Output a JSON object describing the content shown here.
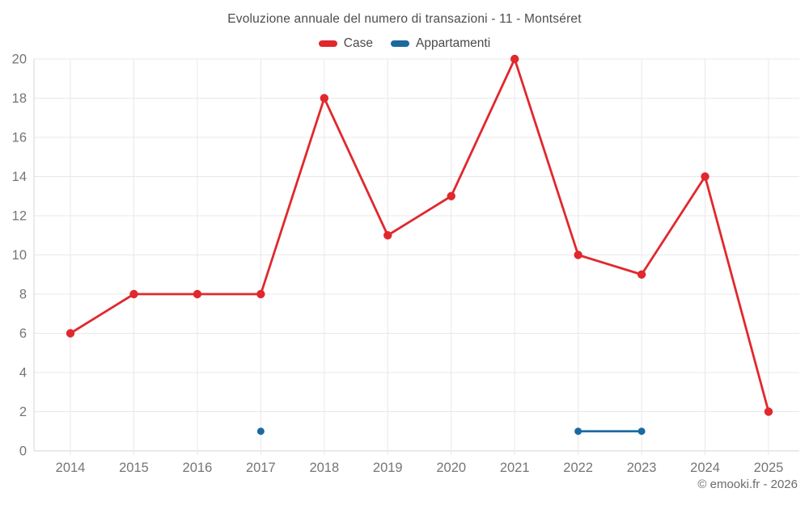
{
  "header": {
    "title": "Evoluzione annuale del numero di transazioni - 11 - Montséret"
  },
  "footer": {
    "copyright": "© emooki.fr - 2026"
  },
  "colors": {
    "case_red": "#e0282d",
    "appartamenti_blue": "#1a6a9f",
    "grid_line": "#e8e8e8",
    "axis_line": "#d5d5d5",
    "tick_text": "#757575"
  },
  "chart_data": {
    "type": "line",
    "title": "Evoluzione annuale del numero di transazioni - 11 - Montséret",
    "xlabel": "",
    "ylabel": "",
    "categories": [
      2014,
      2015,
      2016,
      2017,
      2018,
      2019,
      2020,
      2021,
      2022,
      2023,
      2024,
      2025
    ],
    "series": [
      {
        "name": "Case",
        "color": "#e0282d",
        "values": [
          6,
          8,
          8,
          8,
          18,
          11,
          13,
          20,
          10,
          9,
          14,
          2
        ]
      },
      {
        "name": "Appartamenti",
        "color": "#1a6a9f",
        "values": [
          null,
          null,
          null,
          1,
          null,
          null,
          null,
          null,
          1,
          1,
          null,
          null
        ]
      }
    ],
    "ylim": [
      0,
      20
    ],
    "ytick_step": 2,
    "grid": true,
    "legend_position": "top"
  }
}
